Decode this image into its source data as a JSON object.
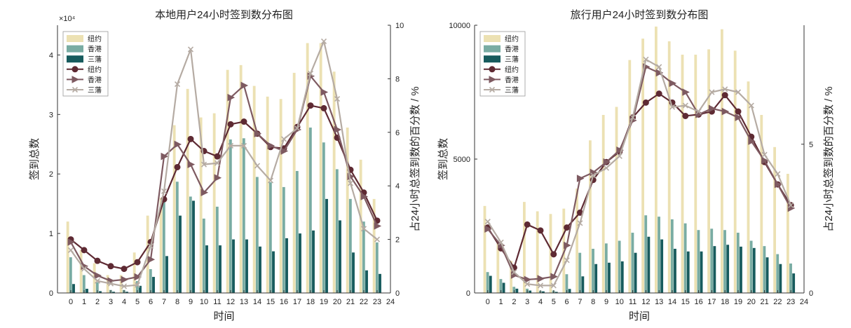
{
  "colors": {
    "ny_bar": "#ece1b3",
    "hk_bar": "#79aca3",
    "sf_bar": "#175b5d",
    "ny_line": "#5e2a33",
    "hk_line": "#7e5a61",
    "sf_line": "#b5aba3",
    "axis": "#333333"
  },
  "chart_data": [
    {
      "type": "bar+line",
      "title": "本地用户24小时签到数分布图",
      "xlabel": "时间",
      "ylabel": "签到总数",
      "y2label": "占24小时总签到数的百分数 / %",
      "y_exponent_label": "×10⁴",
      "xlim": [
        -1,
        24
      ],
      "ylim": [
        0,
        4.5
      ],
      "y2lim": [
        0,
        10
      ],
      "x_ticks": [
        0,
        1,
        2,
        3,
        4,
        5,
        6,
        7,
        8,
        9,
        10,
        11,
        12,
        13,
        14,
        15,
        16,
        17,
        18,
        19,
        20,
        21,
        22,
        23,
        24
      ],
      "y_ticks": [
        0,
        1,
        2,
        3,
        4
      ],
      "y2_ticks": [
        0,
        2,
        4,
        6,
        8,
        10
      ],
      "y_tick_labels": [
        "0",
        "1",
        "2",
        "3",
        "4"
      ],
      "y2_tick_labels": [
        "0",
        "2",
        "4",
        "6",
        "8",
        "10"
      ],
      "legend": [
        "纽约",
        "香港",
        "三藩",
        "纽约",
        "香港",
        "三藩"
      ],
      "bar_series": [
        {
          "name": "纽约",
          "values": [
            1.2,
            0.72,
            0.5,
            0.3,
            0.3,
            0.68,
            1.3,
            1.6,
            2.82,
            3.43,
            2.95,
            3.02,
            3.75,
            3.83,
            3.48,
            3.3,
            3.26,
            3.7,
            4.2,
            4.2,
            3.72,
            2.78,
            2.24,
            1.58
          ]
        },
        {
          "name": "香港",
          "values": [
            0.6,
            0.3,
            0.18,
            0.05,
            0.05,
            0.2,
            0.4,
            1.6,
            1.87,
            1.62,
            1.25,
            1.45,
            2.58,
            2.6,
            1.95,
            1.86,
            1.78,
            2.05,
            2.78,
            2.53,
            2.08,
            1.58,
            1.2,
            0.85
          ]
        },
        {
          "name": "三藩",
          "values": [
            0.15,
            0.07,
            0.03,
            0.02,
            0.02,
            0.12,
            0.27,
            0.62,
            1.3,
            1.55,
            0.8,
            0.8,
            0.9,
            0.9,
            0.78,
            0.7,
            0.92,
            1.0,
            1.05,
            1.58,
            1.22,
            0.68,
            0.38,
            0.32
          ]
        }
      ],
      "line_series": [
        {
          "name": "纽约",
          "marker": "circle",
          "values": [
            2.0,
            1.6,
            1.2,
            1.0,
            0.9,
            1.15,
            1.9,
            3.5,
            4.7,
            5.75,
            5.3,
            5.1,
            6.3,
            6.4,
            5.95,
            5.45,
            5.4,
            6.2,
            7.0,
            6.9,
            5.8,
            4.6,
            3.75,
            2.7
          ]
        },
        {
          "name": "香港",
          "marker": "triangle",
          "values": [
            1.9,
            1.0,
            0.65,
            0.45,
            0.5,
            0.6,
            1.25,
            5.1,
            5.55,
            4.8,
            3.75,
            4.3,
            7.3,
            7.75,
            5.95,
            5.5,
            5.3,
            6.1,
            8.1,
            7.5,
            6.1,
            4.35,
            3.6,
            2.5
          ]
        },
        {
          "name": "三藩",
          "marker": "x",
          "values": [
            1.6,
            0.9,
            0.45,
            0.35,
            0.25,
            0.3,
            1.75,
            3.8,
            7.8,
            9.1,
            4.8,
            4.85,
            5.5,
            5.5,
            4.75,
            4.2,
            5.75,
            6.15,
            8.2,
            9.4,
            7.25,
            4.1,
            2.4,
            2.0
          ]
        }
      ]
    },
    {
      "type": "bar+line",
      "title": "旅行用户24小时签到数分布图",
      "xlabel": "时间",
      "ylabel": "签到总数",
      "y2label": "占24小时总签到数的百分数 / %",
      "xlim": [
        -1,
        24
      ],
      "ylim": [
        0,
        10000
      ],
      "y2lim": [
        0,
        9
      ],
      "x_ticks": [
        0,
        1,
        2,
        3,
        4,
        5,
        6,
        7,
        8,
        9,
        10,
        11,
        12,
        13,
        14,
        15,
        16,
        17,
        18,
        19,
        20,
        21,
        22,
        23,
        24
      ],
      "y_ticks": [
        0,
        5000,
        10000
      ],
      "y2_ticks": [
        0,
        5
      ],
      "y_tick_labels": [
        "0",
        "5000",
        "10000"
      ],
      "y2_tick_labels": [
        "0",
        "5"
      ],
      "legend": [
        "纽约",
        "香港",
        "三藩",
        "纽约",
        "香港",
        "三藩"
      ],
      "bar_series": [
        {
          "name": "纽约",
          "values": [
            3250,
            1850,
            1200,
            3400,
            3050,
            2950,
            3150,
            3900,
            5700,
            6650,
            6950,
            8700,
            9500,
            9950,
            9400,
            8900,
            8900,
            9100,
            9850,
            9050,
            7900,
            6650,
            5450,
            4450
          ]
        },
        {
          "name": "香港",
          "values": [
            780,
            520,
            230,
            160,
            80,
            90,
            700,
            1500,
            1650,
            1850,
            1950,
            2250,
            2900,
            2850,
            2750,
            2600,
            2350,
            2400,
            2350,
            2250,
            1950,
            1750,
            1450,
            1100
          ]
        },
        {
          "name": "三藩",
          "values": [
            640,
            380,
            160,
            90,
            60,
            40,
            150,
            620,
            1080,
            1130,
            1180,
            1500,
            2100,
            2000,
            1650,
            1550,
            1550,
            1750,
            1800,
            1730,
            1680,
            1330,
            1080,
            730
          ]
        }
      ],
      "line_series": [
        {
          "name": "纽约",
          "marker": "circle",
          "values": [
            2.2,
            1.5,
            0.85,
            2.3,
            2.1,
            1.3,
            2.2,
            2.7,
            3.8,
            4.4,
            4.75,
            5.9,
            6.4,
            6.7,
            6.4,
            5.95,
            6.0,
            6.1,
            6.65,
            6.1,
            5.25,
            4.4,
            3.65,
            2.95
          ]
        },
        {
          "name": "香港",
          "marker": "triangle",
          "values": [
            2.15,
            1.6,
            0.6,
            0.45,
            0.48,
            0.55,
            1.6,
            3.85,
            4.05,
            4.4,
            4.8,
            5.8,
            7.6,
            7.4,
            7.05,
            6.75,
            6.0,
            6.2,
            6.1,
            5.9,
            5.1,
            4.45,
            3.65,
            2.85
          ]
        },
        {
          "name": "三藩",
          "marker": "x",
          "values": [
            2.4,
            1.7,
            0.7,
            0.3,
            0.25,
            0.25,
            1.1,
            2.35,
            3.95,
            4.2,
            4.6,
            5.9,
            7.85,
            7.6,
            6.25,
            6.3,
            6.1,
            6.75,
            6.85,
            6.75,
            6.3,
            4.65,
            4.0,
            2.95
          ]
        }
      ]
    }
  ]
}
